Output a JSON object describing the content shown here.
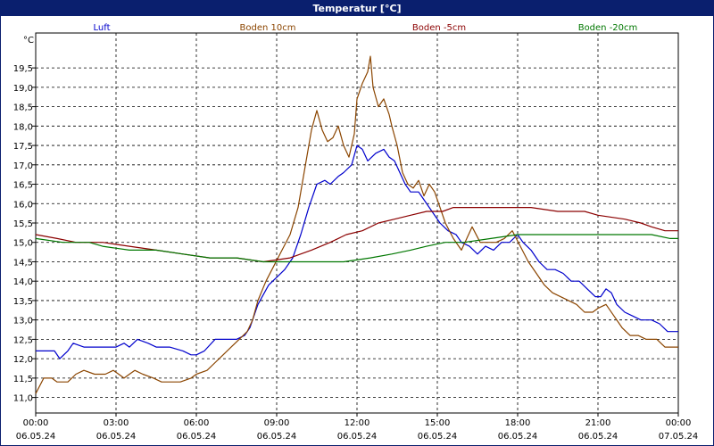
{
  "window": {
    "title": "Temperatur [°C]"
  },
  "chart_data": {
    "type": "line",
    "title": "Temperatur [°C]",
    "ylabel": "°C",
    "xlabel": "",
    "ylim": [
      10.6,
      20.4
    ],
    "yticks": [
      11.0,
      11.5,
      12.0,
      12.5,
      13.0,
      13.5,
      14.0,
      14.5,
      15.0,
      15.5,
      16.0,
      16.5,
      17.0,
      17.5,
      18.0,
      18.5,
      19.0,
      19.5
    ],
    "ytick_labels": [
      "11,0",
      "11,5",
      "12,0",
      "12,5",
      "13,0",
      "13,5",
      "14,0",
      "14,5",
      "15,0",
      "15,5",
      "16,0",
      "16,5",
      "17,0",
      "17,5",
      "18,0",
      "18,5",
      "19,0",
      "19,5"
    ],
    "xlim": [
      0,
      24
    ],
    "xticks": [
      {
        "h": 0,
        "time": "00:00",
        "date": "06.05.24"
      },
      {
        "h": 3,
        "time": "03:00",
        "date": "06.05.24"
      },
      {
        "h": 6,
        "time": "06:00",
        "date": "06.05.24"
      },
      {
        "h": 9,
        "time": "09:00",
        "date": "06.05.24"
      },
      {
        "h": 12,
        "time": "12:00",
        "date": "06.05.24"
      },
      {
        "h": 15,
        "time": "15:00",
        "date": "06.05.24"
      },
      {
        "h": 18,
        "time": "18:00",
        "date": "06.05.24"
      },
      {
        "h": 21,
        "time": "21:00",
        "date": "06.05.24"
      },
      {
        "h": 24,
        "time": "00:00",
        "date": "07.05.24"
      }
    ],
    "grid": true,
    "legend_position": "top",
    "series": [
      {
        "name": "Luft",
        "color": "#0000cc",
        "points": [
          [
            0,
            12.2
          ],
          [
            0.7,
            12.2
          ],
          [
            0.9,
            12.0
          ],
          [
            1.2,
            12.2
          ],
          [
            1.4,
            12.4
          ],
          [
            1.8,
            12.3
          ],
          [
            2.5,
            12.3
          ],
          [
            3.0,
            12.3
          ],
          [
            3.3,
            12.4
          ],
          [
            3.5,
            12.3
          ],
          [
            3.8,
            12.5
          ],
          [
            4.2,
            12.4
          ],
          [
            4.5,
            12.3
          ],
          [
            5.0,
            12.3
          ],
          [
            5.5,
            12.2
          ],
          [
            5.8,
            12.1
          ],
          [
            6.0,
            12.1
          ],
          [
            6.3,
            12.2
          ],
          [
            6.7,
            12.5
          ],
          [
            7.5,
            12.5
          ],
          [
            7.8,
            12.6
          ],
          [
            8.0,
            12.8
          ],
          [
            8.3,
            13.4
          ],
          [
            8.7,
            13.9
          ],
          [
            9.0,
            14.1
          ],
          [
            9.3,
            14.3
          ],
          [
            9.6,
            14.6
          ],
          [
            9.9,
            15.2
          ],
          [
            10.2,
            15.9
          ],
          [
            10.5,
            16.5
          ],
          [
            10.8,
            16.6
          ],
          [
            11.0,
            16.5
          ],
          [
            11.3,
            16.7
          ],
          [
            11.5,
            16.8
          ],
          [
            11.8,
            17.0
          ],
          [
            12.0,
            17.5
          ],
          [
            12.2,
            17.4
          ],
          [
            12.4,
            17.1
          ],
          [
            12.7,
            17.3
          ],
          [
            13.0,
            17.4
          ],
          [
            13.2,
            17.2
          ],
          [
            13.4,
            17.1
          ],
          [
            13.6,
            16.8
          ],
          [
            13.8,
            16.5
          ],
          [
            14.0,
            16.3
          ],
          [
            14.3,
            16.3
          ],
          [
            14.5,
            16.1
          ],
          [
            14.8,
            15.8
          ],
          [
            15.1,
            15.5
          ],
          [
            15.4,
            15.3
          ],
          [
            15.7,
            15.2
          ],
          [
            15.9,
            15.0
          ],
          [
            16.2,
            14.9
          ],
          [
            16.5,
            14.7
          ],
          [
            16.8,
            14.9
          ],
          [
            17.1,
            14.8
          ],
          [
            17.4,
            15.0
          ],
          [
            17.7,
            15.0
          ],
          [
            18.0,
            15.2
          ],
          [
            18.2,
            15.0
          ],
          [
            18.5,
            14.8
          ],
          [
            18.8,
            14.5
          ],
          [
            19.1,
            14.3
          ],
          [
            19.4,
            14.3
          ],
          [
            19.7,
            14.2
          ],
          [
            20.0,
            14.0
          ],
          [
            20.3,
            14.0
          ],
          [
            20.6,
            13.8
          ],
          [
            20.9,
            13.6
          ],
          [
            21.1,
            13.6
          ],
          [
            21.3,
            13.8
          ],
          [
            21.5,
            13.7
          ],
          [
            21.7,
            13.4
          ],
          [
            22.0,
            13.2
          ],
          [
            22.3,
            13.1
          ],
          [
            22.6,
            13.0
          ],
          [
            23.0,
            13.0
          ],
          [
            23.3,
            12.9
          ],
          [
            23.6,
            12.7
          ],
          [
            24.0,
            12.7
          ]
        ]
      },
      {
        "name": "Boden 10cm",
        "color": "#8b4500",
        "points": [
          [
            0,
            11.1
          ],
          [
            0.3,
            11.5
          ],
          [
            0.6,
            11.5
          ],
          [
            0.8,
            11.4
          ],
          [
            1.2,
            11.4
          ],
          [
            1.5,
            11.6
          ],
          [
            1.8,
            11.7
          ],
          [
            2.2,
            11.6
          ],
          [
            2.6,
            11.6
          ],
          [
            2.9,
            11.7
          ],
          [
            3.1,
            11.6
          ],
          [
            3.3,
            11.5
          ],
          [
            3.5,
            11.6
          ],
          [
            3.7,
            11.7
          ],
          [
            4.0,
            11.6
          ],
          [
            4.4,
            11.5
          ],
          [
            4.7,
            11.4
          ],
          [
            5.0,
            11.4
          ],
          [
            5.4,
            11.4
          ],
          [
            5.8,
            11.5
          ],
          [
            6.0,
            11.6
          ],
          [
            6.4,
            11.7
          ],
          [
            6.7,
            11.9
          ],
          [
            7.0,
            12.1
          ],
          [
            7.3,
            12.3
          ],
          [
            7.6,
            12.5
          ],
          [
            7.9,
            12.7
          ],
          [
            8.1,
            13.0
          ],
          [
            8.3,
            13.5
          ],
          [
            8.6,
            14.0
          ],
          [
            8.9,
            14.4
          ],
          [
            9.2,
            14.8
          ],
          [
            9.5,
            15.2
          ],
          [
            9.8,
            15.9
          ],
          [
            10.1,
            17.1
          ],
          [
            10.3,
            17.9
          ],
          [
            10.5,
            18.4
          ],
          [
            10.7,
            17.9
          ],
          [
            10.9,
            17.6
          ],
          [
            11.1,
            17.7
          ],
          [
            11.3,
            18.0
          ],
          [
            11.5,
            17.5
          ],
          [
            11.7,
            17.2
          ],
          [
            11.9,
            17.8
          ],
          [
            12.0,
            18.7
          ],
          [
            12.2,
            19.1
          ],
          [
            12.4,
            19.4
          ],
          [
            12.5,
            19.8
          ],
          [
            12.6,
            19.0
          ],
          [
            12.8,
            18.5
          ],
          [
            13.0,
            18.7
          ],
          [
            13.2,
            18.3
          ],
          [
            13.3,
            18.0
          ],
          [
            13.5,
            17.5
          ],
          [
            13.7,
            16.8
          ],
          [
            13.9,
            16.5
          ],
          [
            14.1,
            16.4
          ],
          [
            14.3,
            16.6
          ],
          [
            14.5,
            16.2
          ],
          [
            14.7,
            16.5
          ],
          [
            14.9,
            16.3
          ],
          [
            15.1,
            15.9
          ],
          [
            15.3,
            15.5
          ],
          [
            15.6,
            15.1
          ],
          [
            15.9,
            14.8
          ],
          [
            16.1,
            15.1
          ],
          [
            16.3,
            15.4
          ],
          [
            16.6,
            15.0
          ],
          [
            16.9,
            15.0
          ],
          [
            17.2,
            15.0
          ],
          [
            17.5,
            15.1
          ],
          [
            17.8,
            15.3
          ],
          [
            18.1,
            14.9
          ],
          [
            18.4,
            14.5
          ],
          [
            18.7,
            14.2
          ],
          [
            19.0,
            13.9
          ],
          [
            19.3,
            13.7
          ],
          [
            19.6,
            13.6
          ],
          [
            19.9,
            13.5
          ],
          [
            20.2,
            13.4
          ],
          [
            20.5,
            13.2
          ],
          [
            20.8,
            13.2
          ],
          [
            21.0,
            13.3
          ],
          [
            21.3,
            13.4
          ],
          [
            21.6,
            13.1
          ],
          [
            21.9,
            12.8
          ],
          [
            22.2,
            12.6
          ],
          [
            22.5,
            12.6
          ],
          [
            22.8,
            12.5
          ],
          [
            23.2,
            12.5
          ],
          [
            23.5,
            12.3
          ],
          [
            24.0,
            12.3
          ]
        ]
      },
      {
        "name": "Boden -5cm",
        "color": "#8b0000",
        "points": [
          [
            0,
            15.2
          ],
          [
            0.8,
            15.1
          ],
          [
            1.5,
            15.0
          ],
          [
            2.5,
            15.0
          ],
          [
            3.5,
            14.9
          ],
          [
            4.5,
            14.8
          ],
          [
            5.5,
            14.7
          ],
          [
            6.5,
            14.6
          ],
          [
            7.5,
            14.6
          ],
          [
            8.5,
            14.5
          ],
          [
            9.5,
            14.6
          ],
          [
            10.3,
            14.8
          ],
          [
            11.0,
            15.0
          ],
          [
            11.6,
            15.2
          ],
          [
            12.2,
            15.3
          ],
          [
            12.8,
            15.5
          ],
          [
            13.4,
            15.6
          ],
          [
            14.0,
            15.7
          ],
          [
            14.6,
            15.8
          ],
          [
            15.2,
            15.8
          ],
          [
            15.6,
            15.9
          ],
          [
            16.5,
            15.9
          ],
          [
            17.5,
            15.9
          ],
          [
            18.5,
            15.9
          ],
          [
            19.5,
            15.8
          ],
          [
            20.5,
            15.8
          ],
          [
            21.0,
            15.7
          ],
          [
            22.0,
            15.6
          ],
          [
            22.6,
            15.5
          ],
          [
            23.0,
            15.4
          ],
          [
            23.5,
            15.3
          ],
          [
            24.0,
            15.3
          ]
        ]
      },
      {
        "name": "Boden -20cm",
        "color": "#007700",
        "points": [
          [
            0,
            15.1
          ],
          [
            1.0,
            15.0
          ],
          [
            2.0,
            15.0
          ],
          [
            2.5,
            14.9
          ],
          [
            3.5,
            14.8
          ],
          [
            4.5,
            14.8
          ],
          [
            5.5,
            14.7
          ],
          [
            6.5,
            14.6
          ],
          [
            7.5,
            14.6
          ],
          [
            8.5,
            14.5
          ],
          [
            9.5,
            14.5
          ],
          [
            10.5,
            14.5
          ],
          [
            11.5,
            14.5
          ],
          [
            12.5,
            14.6
          ],
          [
            13.3,
            14.7
          ],
          [
            14.0,
            14.8
          ],
          [
            14.6,
            14.9
          ],
          [
            15.3,
            15.0
          ],
          [
            16.0,
            15.0
          ],
          [
            17.0,
            15.1
          ],
          [
            18.0,
            15.2
          ],
          [
            19.0,
            15.2
          ],
          [
            20.0,
            15.2
          ],
          [
            21.0,
            15.2
          ],
          [
            22.0,
            15.2
          ],
          [
            23.0,
            15.2
          ],
          [
            23.7,
            15.1
          ],
          [
            24.0,
            15.1
          ]
        ]
      }
    ]
  }
}
